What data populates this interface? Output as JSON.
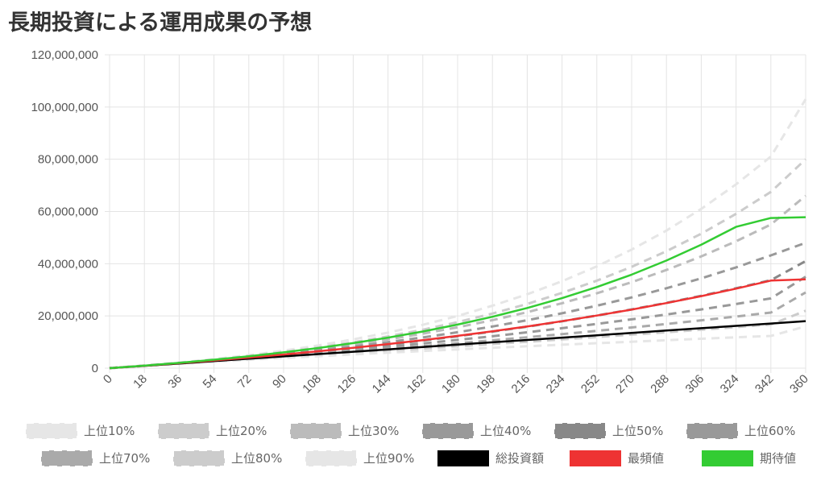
{
  "title": "長期投資による運用成果の予想",
  "chart_data": {
    "type": "line",
    "title": "長期投資による運用成果の予想",
    "xlabel": "",
    "ylabel": "",
    "x": [
      0,
      18,
      36,
      54,
      72,
      90,
      108,
      126,
      144,
      162,
      180,
      198,
      216,
      234,
      252,
      270,
      288,
      306,
      324,
      342,
      360
    ],
    "x_ticks": [
      "0",
      "18",
      "36",
      "54",
      "72",
      "90",
      "108",
      "126",
      "144",
      "162",
      "180",
      "198",
      "216",
      "234",
      "252",
      "270",
      "288",
      "306",
      "324",
      "342",
      "360"
    ],
    "y_ticks": [
      "0",
      "20,000,000",
      "40,000,000",
      "60,000,000",
      "80,000,000",
      "100,000,000",
      "120,000,000"
    ],
    "ylim": [
      0,
      120000000
    ],
    "xlim": [
      0,
      360
    ],
    "grid": true,
    "legend_position": "bottom",
    "series": [
      {
        "name": "上位10%",
        "color": "#e6e6e6",
        "dash": true,
        "values": [
          0,
          1000000,
          2150000,
          3450000,
          4950000,
          6700000,
          8700000,
          11000000,
          13600000,
          16600000,
          20000000,
          23900000,
          28300000,
          33300000,
          39000000,
          45400000,
          52700000,
          61000000,
          70400000,
          81000000,
          103000000
        ]
      },
      {
        "name": "上位20%",
        "color": "#cccccc",
        "dash": true,
        "values": [
          0,
          980000,
          2050000,
          3250000,
          4600000,
          6150000,
          7900000,
          9900000,
          12150000,
          14700000,
          17600000,
          20900000,
          24600000,
          28800000,
          33500000,
          38800000,
          44800000,
          51500000,
          59100000,
          67500000,
          80000000
        ]
      },
      {
        "name": "上位30%",
        "color": "#bbbbbb",
        "dash": true,
        "values": [
          0,
          960000,
          1980000,
          3100000,
          4350000,
          5750000,
          7300000,
          9050000,
          11000000,
          13200000,
          15650000,
          18400000,
          21450000,
          24850000,
          28650000,
          32900000,
          37600000,
          42800000,
          48600000,
          55000000,
          66000000
        ]
      },
      {
        "name": "上位40%",
        "color": "#999999",
        "dash": true,
        "values": [
          0,
          940000,
          1920000,
          2980000,
          4130000,
          5400000,
          6780000,
          8300000,
          9950000,
          11750000,
          13750000,
          15950000,
          18350000,
          21000000,
          23900000,
          27100000,
          30600000,
          34400000,
          38600000,
          43200000,
          48000000
        ]
      },
      {
        "name": "上位50%",
        "color": "#888888",
        "dash": true,
        "values": [
          0,
          925000,
          1870000,
          2870000,
          3930000,
          5080000,
          6310000,
          7630000,
          9050000,
          10580000,
          12230000,
          14000000,
          15900000,
          17950000,
          20150000,
          22500000,
          25000000,
          27700000,
          30600000,
          33700000,
          41000000
        ]
      },
      {
        "name": "上位60%",
        "color": "#999999",
        "dash": true,
        "values": [
          0,
          910000,
          1820000,
          2760000,
          3740000,
          4780000,
          5870000,
          7010000,
          8210000,
          9480000,
          10820000,
          12230000,
          13720000,
          15290000,
          16950000,
          18700000,
          20550000,
          22500000,
          24550000,
          26700000,
          35000000
        ]
      },
      {
        "name": "上位70%",
        "color": "#aaaaaa",
        "dash": true,
        "values": [
          0,
          895000,
          1775000,
          2660000,
          3560000,
          4480000,
          5430000,
          6410000,
          7420000,
          8460000,
          9540000,
          10660000,
          11820000,
          13020000,
          14270000,
          15570000,
          16920000,
          18320000,
          19780000,
          21300000,
          29000000
        ]
      },
      {
        "name": "上位80%",
        "color": "#cccccc",
        "dash": true,
        "values": [
          0,
          880000,
          1730000,
          2560000,
          3390000,
          4210000,
          5030000,
          5860000,
          6690000,
          7530000,
          8380000,
          9240000,
          10110000,
          11000000,
          11900000,
          12820000,
          13760000,
          14720000,
          15700000,
          16700000,
          22000000
        ]
      },
      {
        "name": "上位90%",
        "color": "#e6e6e6",
        "dash": true,
        "values": [
          0,
          860000,
          1680000,
          2450000,
          3200000,
          3910000,
          4600000,
          5270000,
          5920000,
          6560000,
          7180000,
          7790000,
          8390000,
          8980000,
          9560000,
          10130000,
          10700000,
          11260000,
          11810000,
          12350000,
          16000000
        ]
      },
      {
        "name": "総投資額",
        "color": "#000000",
        "dash": false,
        "values": [
          0,
          900000,
          1800000,
          2700000,
          3600000,
          4500000,
          5400000,
          6300000,
          7200000,
          8100000,
          9000000,
          9900000,
          10800000,
          11700000,
          12600000,
          13500000,
          14400000,
          15300000,
          16200000,
          17100000,
          18000000
        ]
      },
      {
        "name": "最頻値",
        "color": "#ee3333",
        "dash": false,
        "values": [
          0,
          930000,
          1910000,
          2950000,
          4050000,
          5220000,
          6470000,
          7800000,
          9220000,
          10740000,
          12370000,
          14110000,
          15980000,
          17980000,
          20130000,
          22440000,
          24920000,
          27580000,
          30440000,
          33520000,
          34000000
        ]
      },
      {
        "name": "期待値",
        "color": "#33cc33",
        "dash": false,
        "values": [
          0,
          970000,
          2040000,
          3230000,
          4560000,
          6050000,
          7720000,
          9590000,
          11690000,
          14050000,
          16700000,
          19680000,
          23030000,
          26800000,
          31050000,
          35830000,
          41210000,
          47280000,
          54120000,
          57500000,
          57800000
        ]
      }
    ]
  }
}
